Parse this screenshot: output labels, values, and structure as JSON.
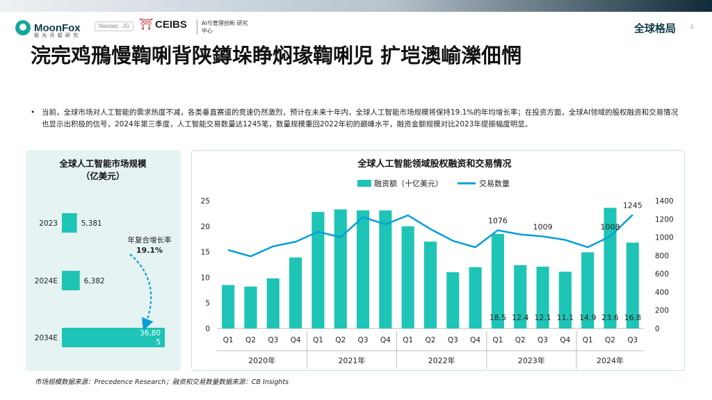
{
  "header": {
    "logo_text": "MoonFox",
    "logo_sub": "极 光 月 狐 研 究",
    "nasdaq_badge": "Nasdaq : JG",
    "ceibs_mark": "⛩",
    "ceibs_text": "CEIBS",
    "ceibs_sub": "AI与管理创新 研究中心",
    "section": "全球格局",
    "page_number": "4"
  },
  "title": "浣完鸡鳽慢鞫唎背陕鐏垛睁焖瑑鞫唎児 扩垲澳崳濼佃惘",
  "bullet_text": "当前，全球市场对人工智能的需求热度不减，各类垂直赛道的竞速仍然激烈，预计在未来十年内，全球人工智能市场规模将保持19.1%的年均增长率；在投资方面，全球AI领域的股权融资和交易情况也显示出积极的信号，2024年第三季度，人工智能交易数量达1245笔，数量规模重回2022年初的巅峰水平，融资金额规模对比2023年提振幅度明显。",
  "source": "市场规模数据来源：Precedence Research；融资和交易数量数据来源：CB Insights",
  "colors": {
    "teal": "#1ec4b5",
    "line": "#0a9fd8",
    "arrow": "#0a9fd8"
  },
  "chart_data": [
    {
      "type": "bar",
      "orientation": "horizontal",
      "title": "全球人工智能市场规模\n（亿美元）",
      "title_line1": "全球人工智能市场规模",
      "title_line2": "（亿美元）",
      "categories": [
        "2023",
        "2024E",
        "2034E"
      ],
      "values": [
        5381,
        6382,
        36805
      ],
      "value_labels": [
        "5,381",
        "6,382",
        "36,80\n5"
      ],
      "annotation_line1": "年复合增长率",
      "annotation_line2": "19.1%"
    },
    {
      "type": "bar+line",
      "title": "全球人工智能领域股权融资和交易情况",
      "legend": [
        "融资额（十亿美元）",
        "交易数量"
      ],
      "legend_position": "top-center",
      "categories": [
        "Q1",
        "Q2",
        "Q3",
        "Q4",
        "Q1",
        "Q2",
        "Q3",
        "Q4",
        "Q1",
        "Q2",
        "Q3",
        "Q4",
        "Q1",
        "Q2",
        "Q3",
        "Q4",
        "Q1",
        "Q2",
        "Q3"
      ],
      "groups": [
        {
          "label": "2020年",
          "count": 4
        },
        {
          "label": "2021年",
          "count": 4
        },
        {
          "label": "2022年",
          "count": 4
        },
        {
          "label": "2023年",
          "count": 4
        },
        {
          "label": "2024年",
          "count": 3
        }
      ],
      "series": [
        {
          "name": "融资额（十亿美元）",
          "type": "bar",
          "axis": "left",
          "values": [
            8.5,
            8.2,
            9.8,
            13.9,
            22.8,
            23.3,
            23.1,
            23.1,
            20.0,
            17.0,
            11.0,
            12.0,
            18.5,
            12.4,
            12.1,
            11.1,
            14.9,
            23.6,
            16.8
          ]
        },
        {
          "name": "交易数量",
          "type": "line",
          "axis": "right",
          "values": [
            860,
            790,
            900,
            950,
            1060,
            1000,
            1220,
            1140,
            1240,
            1090,
            960,
            890,
            1076,
            1030,
            1009,
            970,
            890,
            1008,
            1245
          ]
        }
      ],
      "bar_value_labels": [
        null,
        null,
        null,
        null,
        null,
        null,
        null,
        null,
        null,
        null,
        null,
        null,
        "18.5",
        "12.4",
        "12.1",
        "11.1",
        "14.9",
        "23.6",
        "16.8"
      ],
      "line_value_labels": [
        null,
        null,
        null,
        null,
        null,
        null,
        null,
        null,
        null,
        null,
        null,
        null,
        "1076",
        null,
        "1009",
        null,
        null,
        "1008",
        "1245"
      ],
      "ylim_left": [
        0,
        25
      ],
      "yticks_left": [
        "0",
        "5",
        "10",
        "15",
        "20",
        "25"
      ],
      "ylim_right": [
        0,
        1400
      ],
      "yticks_right": [
        "0",
        "200",
        "400",
        "600",
        "800",
        "1000",
        "1200",
        "1400"
      ]
    }
  ]
}
